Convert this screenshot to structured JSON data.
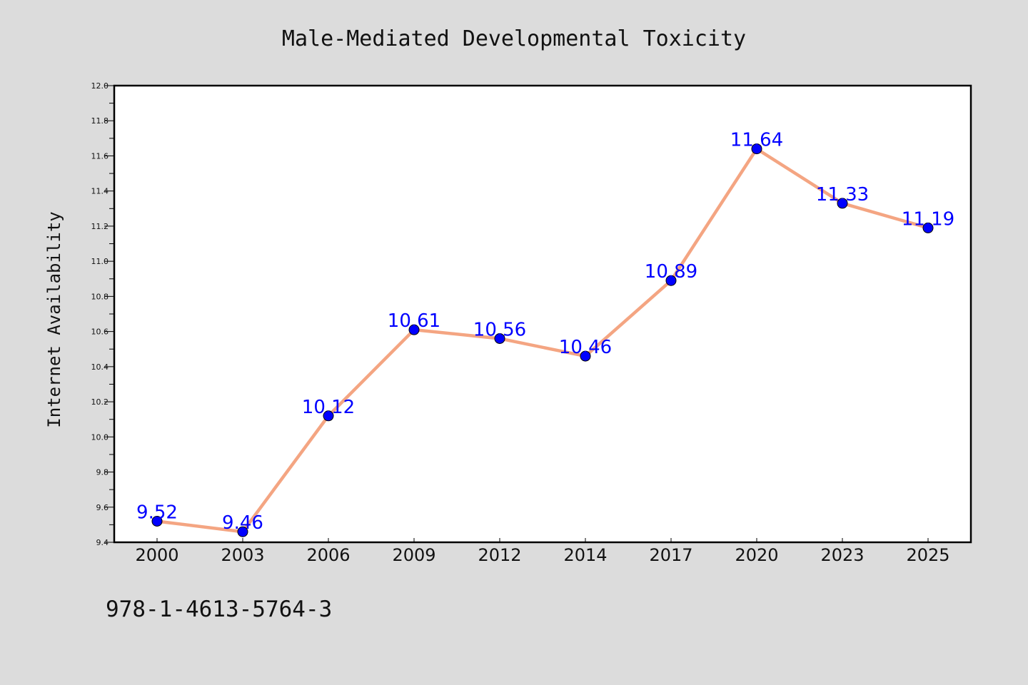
{
  "chart_data": {
    "type": "line",
    "title": "Male-Mediated Developmental Toxicity",
    "xlabel": "",
    "ylabel": "Internet Availability",
    "categories": [
      "2000",
      "2003",
      "2006",
      "2009",
      "2012",
      "2014",
      "2017",
      "2020",
      "2023",
      "2025"
    ],
    "series": [
      {
        "values": [
          9.52,
          9.46,
          10.12,
          10.61,
          10.56,
          10.46,
          10.89,
          11.64,
          11.33,
          11.19
        ],
        "line_color": "#f4a582",
        "marker_color": "#0000ff"
      }
    ],
    "data_labels": [
      "9.52",
      "9.46",
      "10.12",
      "10.61",
      "10.56",
      "10.46",
      "10.89",
      "11.64",
      "11.33",
      "11.19"
    ],
    "ylim": [
      9.4,
      12.0
    ],
    "yticks": [
      "9.4",
      "9.6",
      "9.8",
      "10.0",
      "10.2",
      "10.4",
      "10.6",
      "10.8",
      "11.0",
      "11.2",
      "11.4",
      "11.6",
      "11.8",
      "12.0"
    ],
    "grid": false,
    "legend": "none",
    "plot_background": "#ffffff",
    "figure_background": "#dcdcdc"
  },
  "footer": {
    "code": "978-1-4613-5764-3"
  }
}
